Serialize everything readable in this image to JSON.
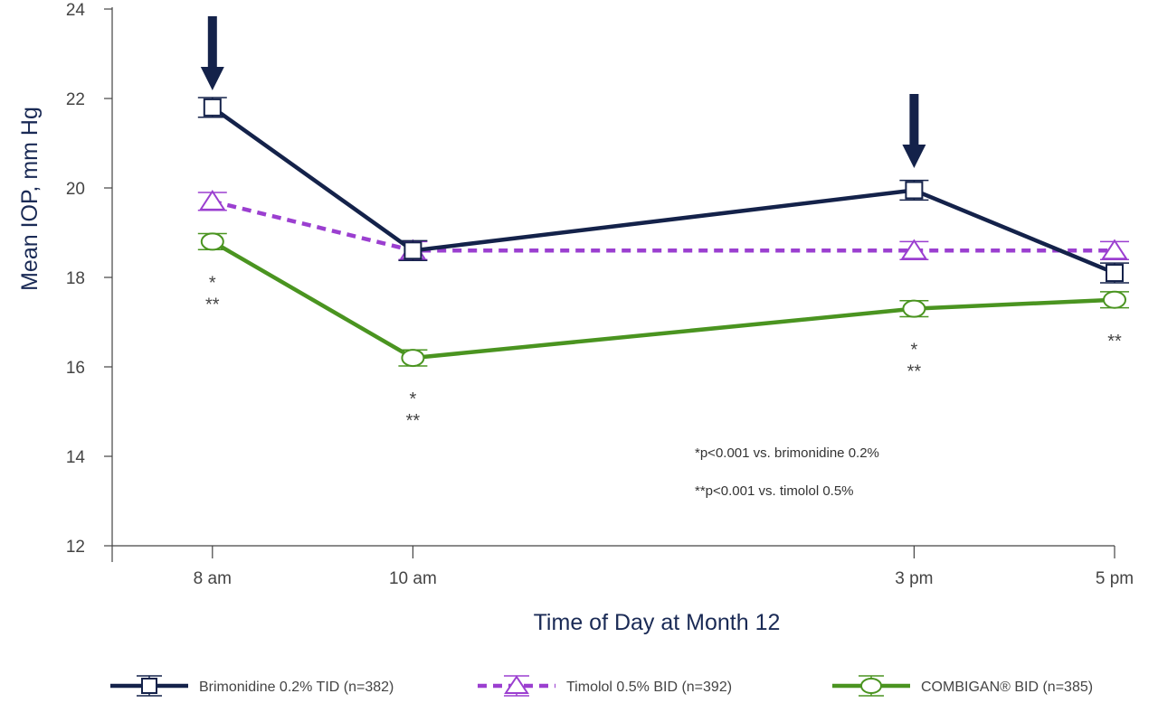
{
  "chart_data": {
    "type": "line",
    "xlabel": "Time of Day at Month 12",
    "ylabel": "Mean IOP, mm Hg",
    "ylim": [
      12,
      24
    ],
    "yticks": [
      12,
      14,
      16,
      18,
      20,
      22,
      24
    ],
    "x": [
      8,
      10,
      15,
      17
    ],
    "x_tick_labels": [
      "8 am",
      "10 am",
      "3 pm",
      "5 pm"
    ],
    "series": [
      {
        "name": "Brimonidine 0.2% TID (n=382)",
        "values": [
          21.8,
          18.6,
          19.95,
          18.1
        ],
        "error": 0.22,
        "color": "#14224a",
        "style": "solid",
        "marker": "square"
      },
      {
        "name": "Timolol 0.5% BID (n=392)",
        "values": [
          19.7,
          18.6,
          18.6,
          18.6
        ],
        "error": 0.2,
        "color": "#9b3fd0",
        "style": "dashed",
        "marker": "triangle"
      },
      {
        "name": "COMBIGAN® BID (n=385)",
        "values": [
          18.8,
          16.2,
          17.3,
          17.5
        ],
        "error": 0.18,
        "color": "#4a9420",
        "style": "solid",
        "marker": "circle"
      }
    ],
    "arrows_at_x": [
      8,
      15
    ],
    "significance": [
      {
        "x": 8,
        "y": 18.8,
        "lines": [
          "*",
          "**"
        ]
      },
      {
        "x": 10,
        "y": 16.2,
        "lines": [
          "*",
          "**"
        ]
      },
      {
        "x": 15,
        "y": 17.3,
        "lines": [
          "*",
          "**"
        ]
      },
      {
        "x": 17,
        "y": 17.5,
        "lines": [
          "**"
        ]
      }
    ],
    "notes": [
      "*p<0.001 vs. brimonidine 0.2%",
      "**p<0.001 vs. timolol 0.5%"
    ],
    "legend_position": "bottom"
  }
}
